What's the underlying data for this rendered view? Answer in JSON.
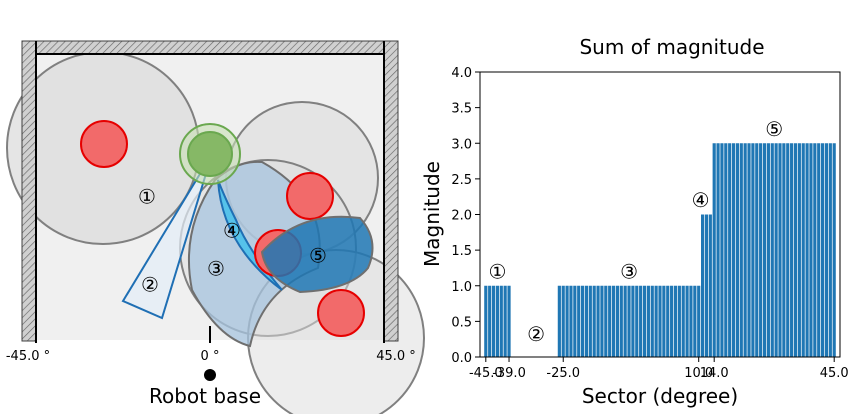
{
  "left_panel": {
    "x_tick_labels": [
      "-45.0 °",
      "0 °",
      "45.0 °"
    ],
    "base_label": "Robot base",
    "region_labels": [
      "①",
      "②",
      "③",
      "④",
      "⑤"
    ],
    "colors": {
      "wall_fill": "#c8c8c8",
      "floor": "#f0f0f0",
      "circle_fill": "#dcdcdc",
      "obstacle": "#f26a6a",
      "obstacle_edge": "#e60000",
      "target_fill": "#86b866",
      "target_edge": "#6aa84f",
      "region_blue": "#1f77b4",
      "region_light": "#a7c4df",
      "region_cyan": "#56c2ea"
    }
  },
  "chart_data": {
    "type": "bar",
    "title": "Sum of magnitude",
    "xlabel": "Sector (degree)",
    "ylabel": "Magnitude",
    "xlim": [
      -46.5,
      46.5
    ],
    "ylim": [
      0,
      4
    ],
    "y_ticks": [
      0.0,
      0.5,
      1.0,
      1.5,
      2.0,
      2.5,
      3.0,
      3.5,
      4.0
    ],
    "y_tick_labels": [
      "0.0",
      "0.5",
      "1.0",
      "1.5",
      "2.0",
      "2.5",
      "3.0",
      "3.5",
      "4.0"
    ],
    "x_ticks": [
      -45.0,
      -39.0,
      -25.0,
      10.0,
      14.0,
      45.0
    ],
    "x_tick_labels": [
      "-45.0",
      "-39.0",
      "-25.0",
      "10.0",
      "14.0",
      "45.0"
    ],
    "bar_color": "#1f77b4",
    "bar_step": 1,
    "segments": [
      {
        "label": "①",
        "from": -45,
        "to": -39,
        "value": 1
      },
      {
        "label": "②",
        "from": -38,
        "to": -27,
        "value": 0
      },
      {
        "label": "③",
        "from": -26,
        "to": 10,
        "value": 1
      },
      {
        "label": "④",
        "from": 11,
        "to": 13,
        "value": 2
      },
      {
        "label": "⑤",
        "from": 14,
        "to": 45,
        "value": 3
      }
    ],
    "annotations": [
      {
        "label": "①",
        "x": -42,
        "y": 1.18
      },
      {
        "label": "②",
        "x": -32,
        "y": 0.3
      },
      {
        "label": "③",
        "x": -8,
        "y": 1.18
      },
      {
        "label": "④",
        "x": 10.5,
        "y": 2.18
      },
      {
        "label": "⑤",
        "x": 29.5,
        "y": 3.18
      }
    ]
  }
}
